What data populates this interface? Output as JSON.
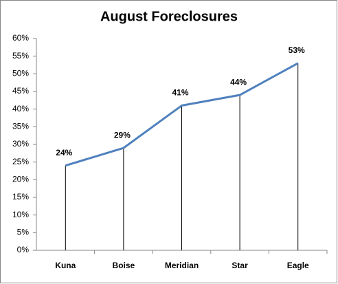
{
  "chart_data": {
    "type": "line",
    "title": "August Foreclosures",
    "categories": [
      "Kuna",
      "Boise",
      "Meridian",
      "Star",
      "Eagle"
    ],
    "values": [
      24,
      29,
      41,
      44,
      53
    ],
    "value_labels": [
      "24%",
      "29%",
      "41%",
      "44%",
      "53%"
    ],
    "color": "#4f81bd",
    "ylim": [
      0,
      60
    ],
    "yticks": [
      {
        "value": 0,
        "label": "0%"
      },
      {
        "value": 5,
        "label": "5%"
      },
      {
        "value": 10,
        "label": "10%"
      },
      {
        "value": 15,
        "label": "15%"
      },
      {
        "value": 20,
        "label": "20%"
      },
      {
        "value": 25,
        "label": "25%"
      },
      {
        "value": 30,
        "label": "30%"
      },
      {
        "value": 35,
        "label": "35%"
      },
      {
        "value": 40,
        "label": "40%"
      },
      {
        "value": 45,
        "label": "45%"
      },
      {
        "value": 50,
        "label": "50%"
      },
      {
        "value": 55,
        "label": "55%"
      },
      {
        "value": 60,
        "label": "60%"
      }
    ],
    "grid": false,
    "drop_lines": true
  }
}
